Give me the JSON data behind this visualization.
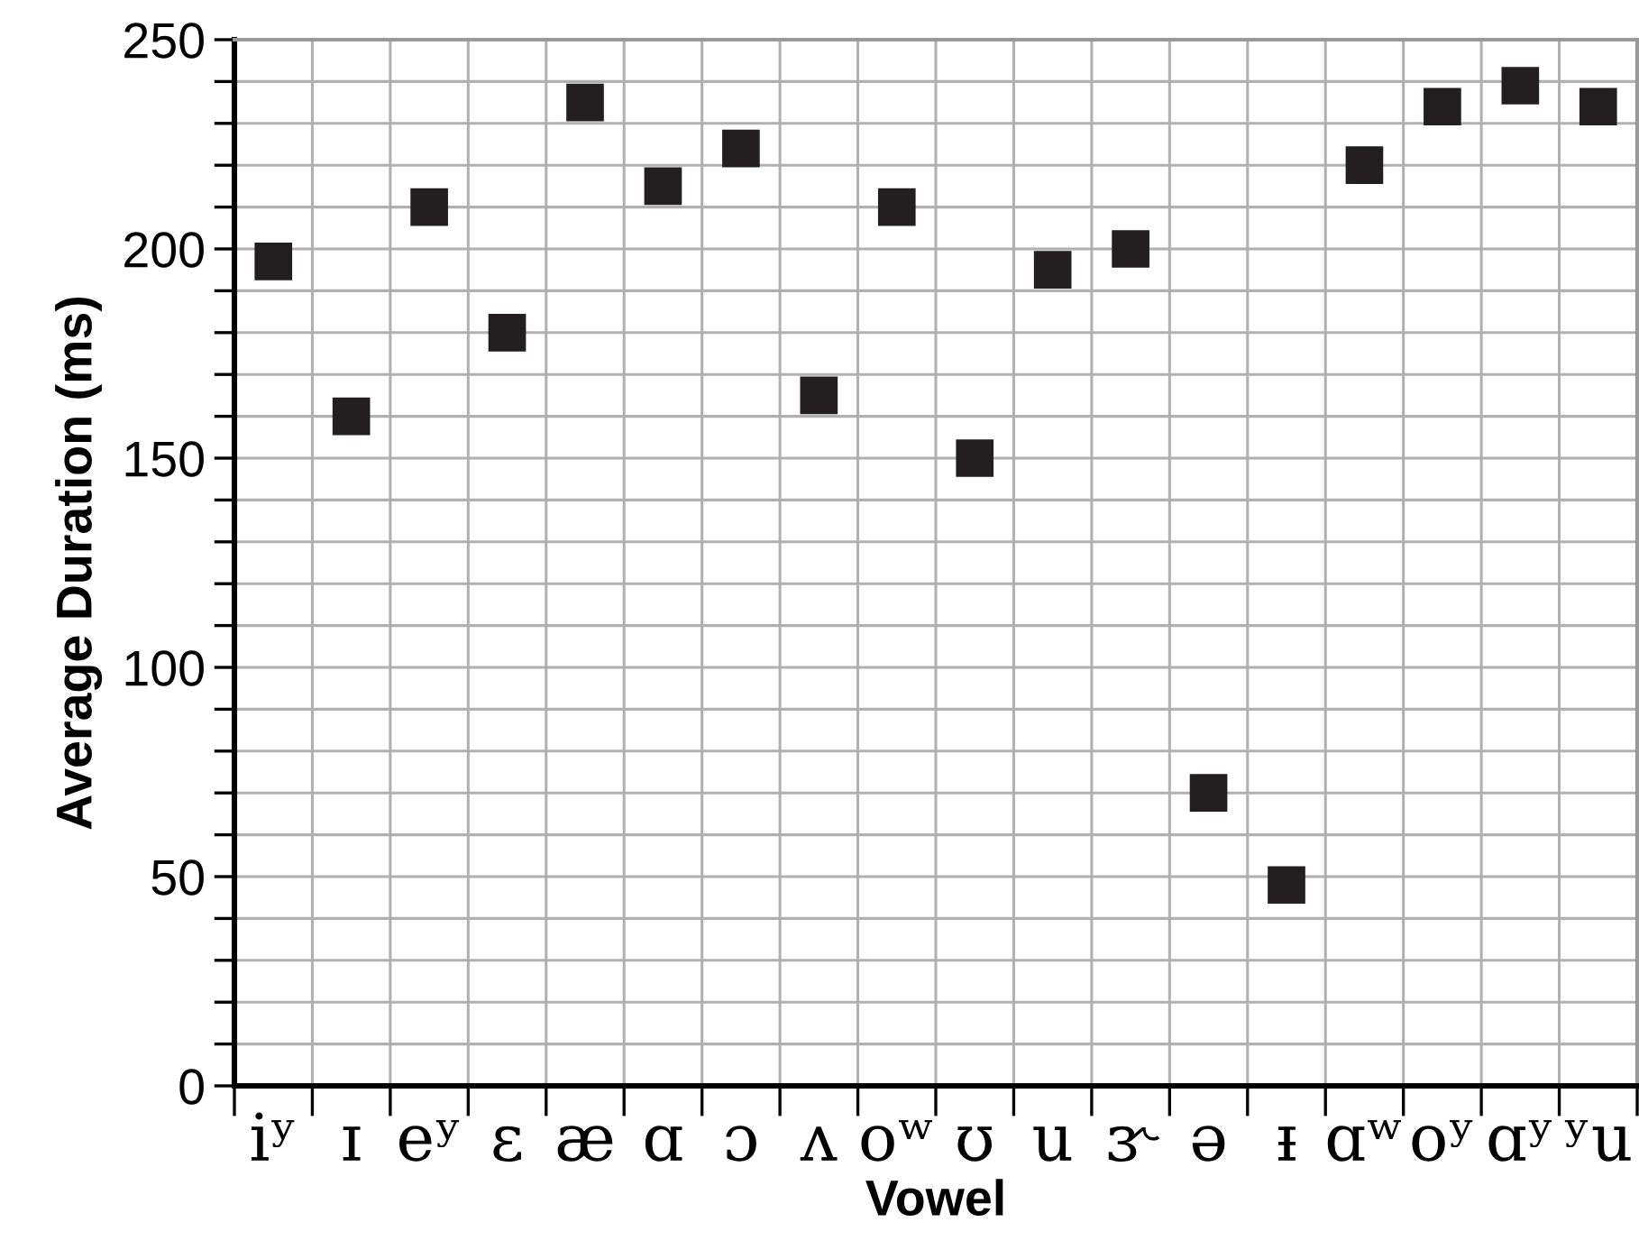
{
  "chart_data": {
    "type": "scatter",
    "xlabel": "Vowel",
    "ylabel": "Average Duration (ms)",
    "categories": [
      "iʸ",
      "ɪ",
      "eʸ",
      "ɛ",
      "æ",
      "ɑ",
      "ɔ",
      "ʌ",
      "oʷ",
      "ʊ",
      "u",
      "ɝ",
      "ə",
      "ᵻ",
      "ɑʷ",
      "oʸ",
      "ɑʸ",
      "ʸu"
    ],
    "series": [
      {
        "color": "#231f20",
        "values": [
          197,
          160,
          210,
          180,
          235,
          215,
          224,
          165,
          210,
          150,
          195,
          200,
          70,
          48,
          220,
          234,
          239,
          234
        ]
      }
    ],
    "marker": "square",
    "grid": true,
    "ylim": [
      0,
      250
    ],
    "yticks": [
      0,
      {
        "value": 10,
        "label": null
      },
      {
        "value": 20,
        "label": null
      },
      {
        "value": 30,
        "label": null
      },
      {
        "value": 40,
        "label": null
      },
      50,
      {
        "value": 60,
        "label": null
      },
      {
        "value": 70,
        "label": null
      },
      {
        "value": 80,
        "label": null
      },
      {
        "value": 90,
        "label": null
      },
      100,
      {
        "value": 110,
        "label": null
      },
      {
        "value": 120,
        "label": null
      },
      {
        "value": 130,
        "label": null
      },
      {
        "value": 140,
        "label": null
      },
      150,
      {
        "value": 160,
        "label": null
      },
      {
        "value": 170,
        "label": null
      },
      {
        "value": 180,
        "label": null
      },
      {
        "value": 190,
        "label": null
      },
      200,
      {
        "value": 210,
        "label": null
      },
      {
        "value": 220,
        "label": null
      },
      {
        "value": 230,
        "label": null
      },
      {
        "value": 240,
        "label": null
      },
      250
    ]
  }
}
